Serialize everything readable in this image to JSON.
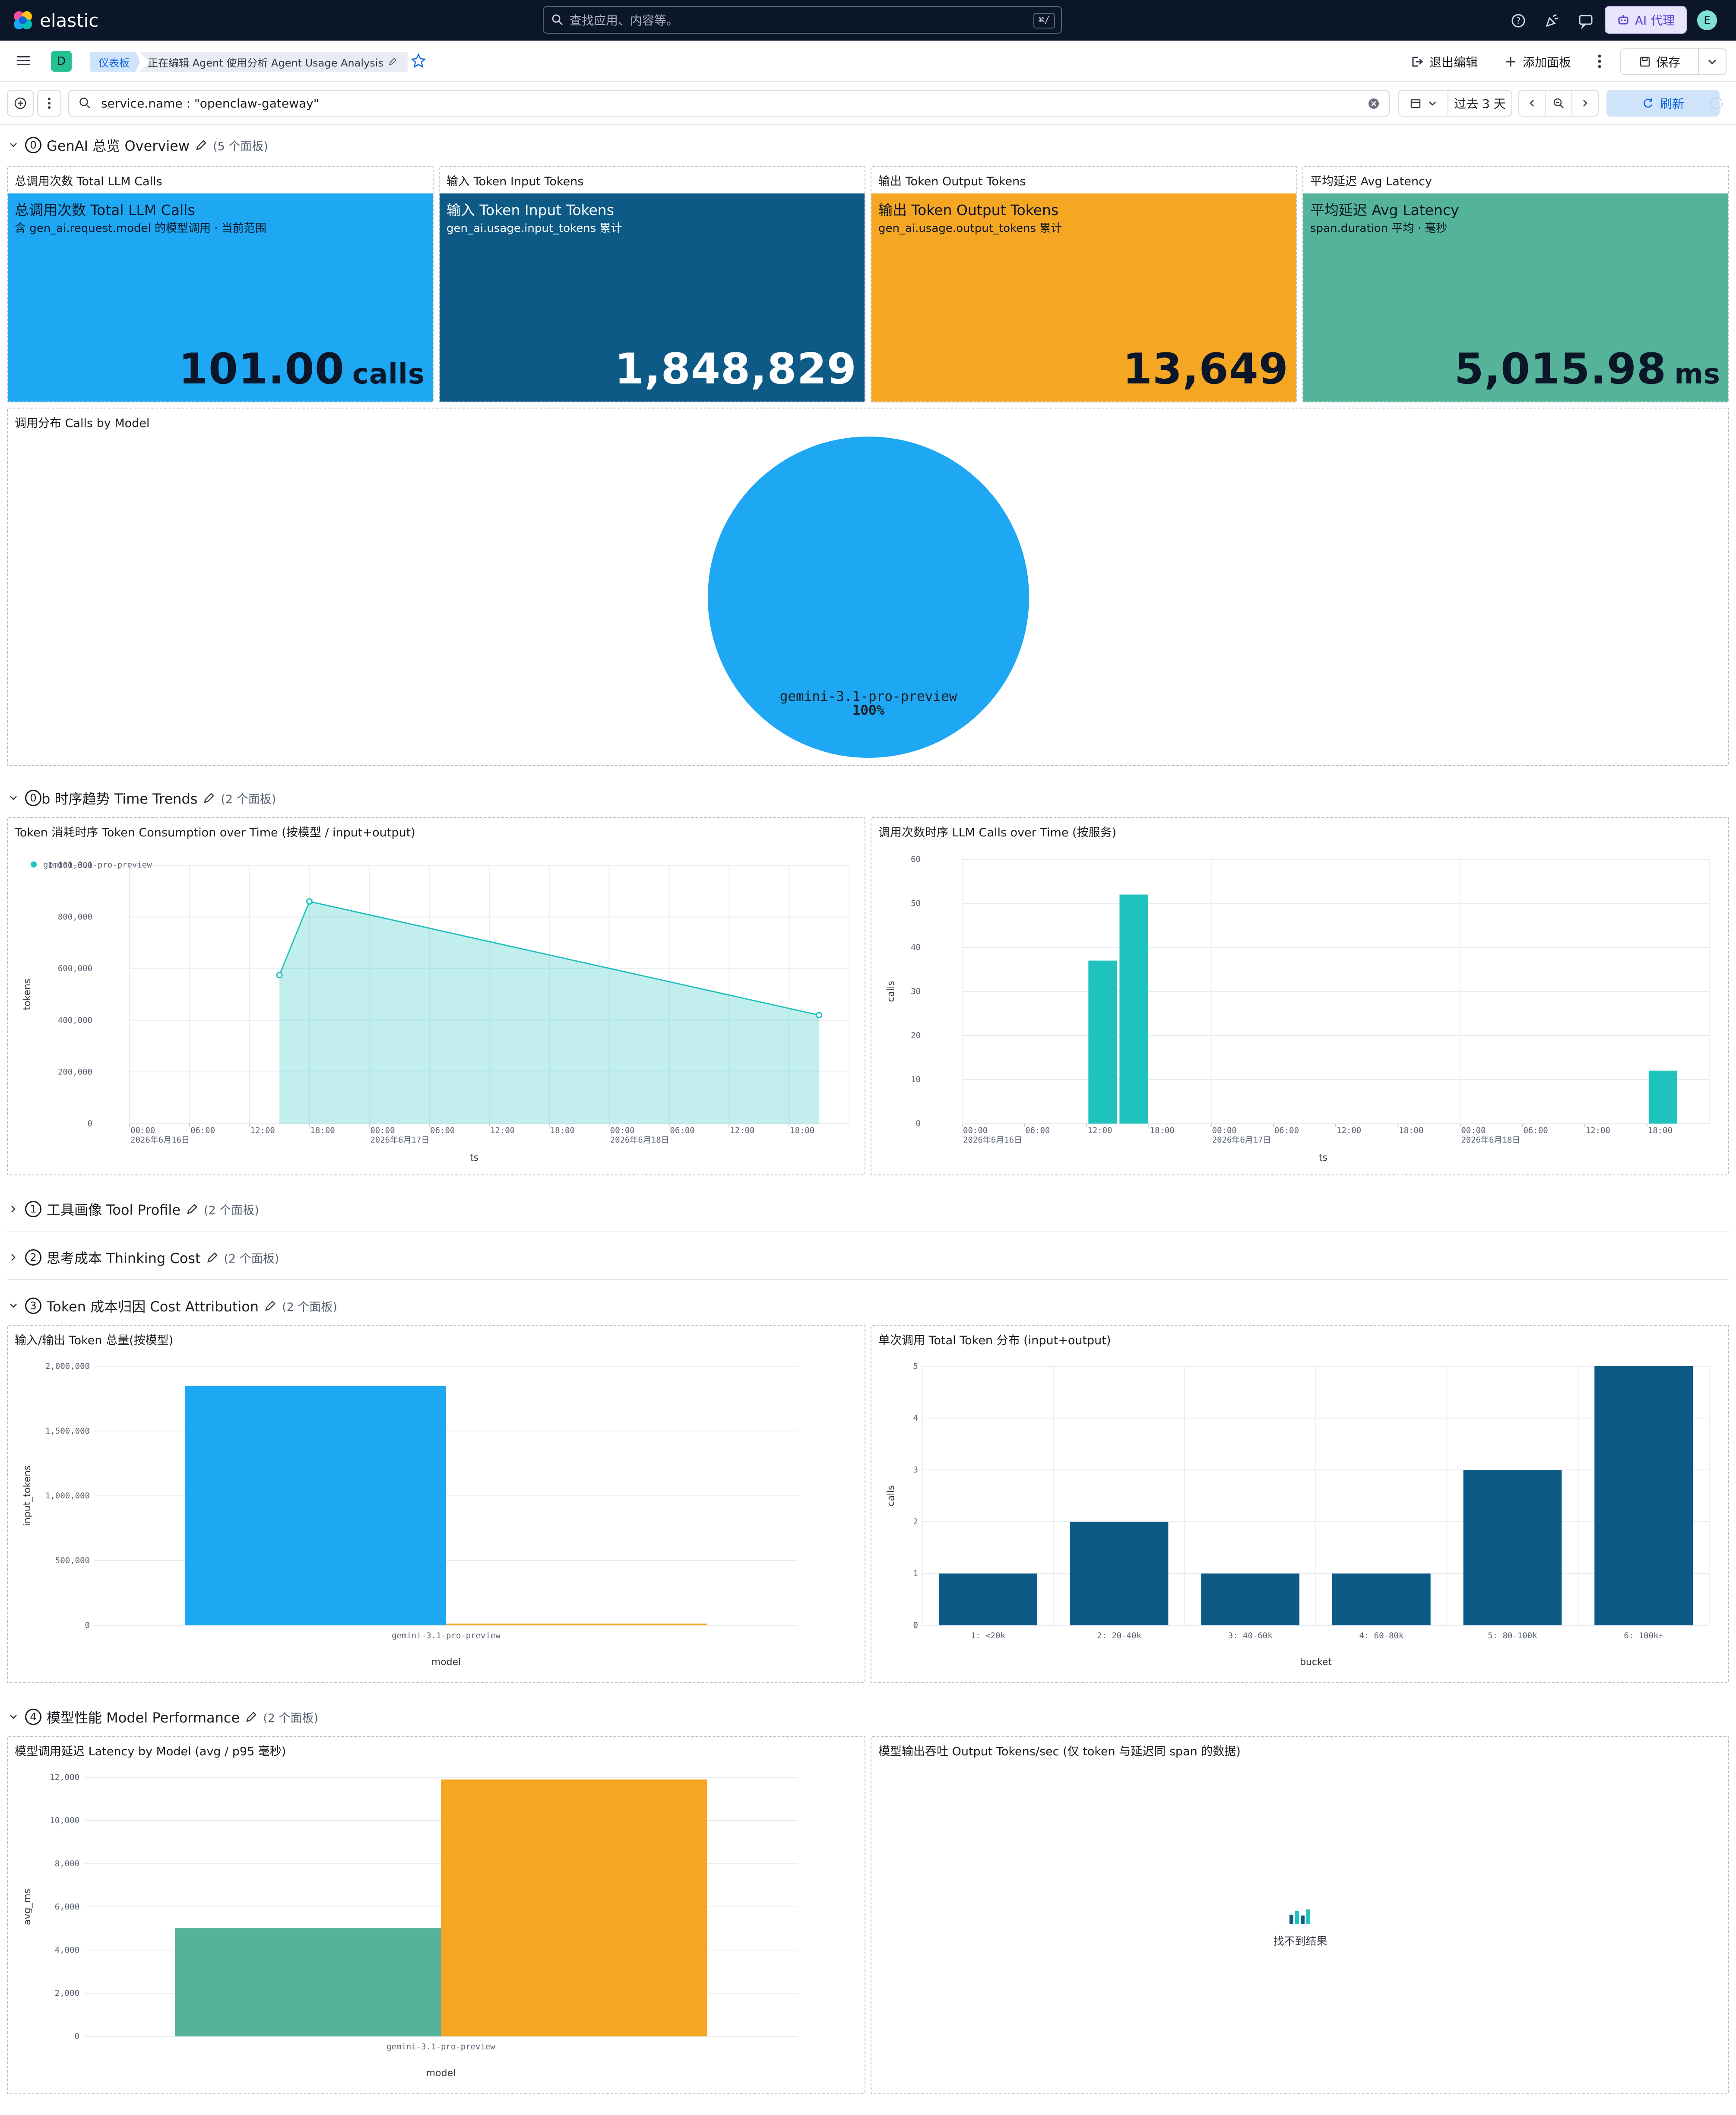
{
  "topbar": {
    "brand": "elastic",
    "search_placeholder": "查找应用、内容等。",
    "search_shortcut": "⌘/",
    "ai_label": "AI 代理",
    "avatar_initial": "E"
  },
  "navbar": {
    "space_initial": "D",
    "crumb_root": "仪表板",
    "crumb_current": "正在编辑 Agent 使用分析 Agent Usage Analysis",
    "exit_edit": "退出编辑",
    "add_panel": "添加面板",
    "save": "保存"
  },
  "query": {
    "text": "service.name : \"openclaw-gateway\"",
    "time_range": "过去 3 天",
    "refresh": "刷新"
  },
  "sections": {
    "overview": {
      "num": "0",
      "title": "GenAI 总览 Overview",
      "count": "(5 个面板)"
    },
    "trends": {
      "num": "0",
      "title_suffix": "b 时序趋势 Time Trends",
      "count": "(2 个面板)"
    },
    "tool": {
      "num": "1",
      "title": "工具画像 Tool Profile",
      "count": "(2 个面板)"
    },
    "thinking": {
      "num": "2",
      "title": "思考成本 Thinking Cost",
      "count": "(2 个面板)"
    },
    "cost": {
      "num": "3",
      "title": "Token 成本归因 Cost Attribution",
      "count": "(2 个面板)"
    },
    "perf": {
      "num": "4",
      "title": "模型性能 Model Performance",
      "count": "(2 个面板)"
    }
  },
  "metrics": [
    {
      "panel_title": "总调用次数 Total LLM Calls",
      "title": "总调用次数 Total LLM Calls",
      "subtitle": "含 gen_ai.request.model 的模型调用 · 当前范围",
      "value": "101.00",
      "unit": "calls",
      "bg": "#1ea7f2",
      "fg": "#0b1628"
    },
    {
      "panel_title": "输入 Token Input Tokens",
      "title": "输入 Token Input Tokens",
      "subtitle": "gen_ai.usage.input_tokens 累计",
      "value": "1,848,829",
      "unit": "",
      "bg": "#0e5a86",
      "fg": "#ffffff"
    },
    {
      "panel_title": "输出 Token Output Tokens",
      "title": "输出 Token Output Tokens",
      "subtitle": "gen_ai.usage.output_tokens 累计",
      "value": "13,649",
      "unit": "",
      "bg": "#f5a623",
      "fg": "#0b1628"
    },
    {
      "panel_title": "平均延迟 Avg Latency",
      "title": "平均延迟 Avg Latency",
      "subtitle": "span.duration 平均 · 毫秒",
      "value": "5,015.98",
      "unit": "ms",
      "bg": "#54b399",
      "fg": "#0b1628"
    }
  ],
  "panels": {
    "pie_title": "调用分布 Calls by Model",
    "token_time_title": "Token 消耗时序 Token Consumption over Time (按模型 / input+output)",
    "calls_time_title": "调用次数时序 LLM Calls over Time (按服务)",
    "io_title": "输入/输出 Token 总量(按模型)",
    "dist_title": "单次调用 Total Token 分布 (input+output)",
    "lat_title": "模型调用延迟 Latency by Model (avg / p95 毫秒)",
    "tput_title": "模型输出吞吐 Output Tokens/sec (仅 token 与延迟同 span 的数据)",
    "no_results": "找不到结果"
  },
  "chart_data": [
    {
      "type": "pie",
      "title": "调用分布 Calls by Model",
      "slices": [
        {
          "label": "gemini-3.1-pro-preview",
          "value": 100,
          "display": "100%",
          "color": "#1ea7f2"
        }
      ]
    },
    {
      "type": "area",
      "title": "Token 消耗时序 Token Consumption over Time (按模型 / input+output)",
      "xlabel": "ts",
      "ylabel": "tokens",
      "legend": "top-left",
      "series": [
        {
          "name": "gemini-3.1-pro-preview",
          "color": "#1ec3bd",
          "points": [
            {
              "x": "2026-06-16 15:00",
              "y": 575000
            },
            {
              "x": "2026-06-16 18:00",
              "y": 860000
            },
            {
              "x": "2026-06-18 21:00",
              "y": 420000
            }
          ]
        }
      ],
      "ylim": [
        0,
        1000000
      ],
      "yticks": [
        "0",
        "200,000",
        "400,000",
        "600,000",
        "800,000",
        "1,000,000"
      ],
      "xticks": [
        "00:00",
        "06:00",
        "12:00",
        "18:00",
        "00:00",
        "06:00",
        "12:00",
        "18:00",
        "00:00",
        "06:00",
        "12:00",
        "18:00"
      ],
      "date_labels": [
        "2026年6月16日",
        "2026年6月17日",
        "2026年6月18日"
      ]
    },
    {
      "type": "bar",
      "title": "调用次数时序 LLM Calls over Time (按服务)",
      "xlabel": "ts",
      "ylabel": "calls",
      "color": "#1ec3bd",
      "bars": [
        {
          "x": "2026-06-16 15:00",
          "y": 37
        },
        {
          "x": "2026-06-16 18:00",
          "y": 52
        },
        {
          "x": "2026-06-18 21:00",
          "y": 12
        }
      ],
      "ylim": [
        0,
        60
      ],
      "yticks": [
        "0",
        "10",
        "20",
        "30",
        "40",
        "50",
        "60"
      ],
      "xticks": [
        "00:00",
        "06:00",
        "12:00",
        "18:00",
        "00:00",
        "06:00",
        "12:00",
        "18:00",
        "00:00",
        "06:00",
        "12:00",
        "18:00"
      ],
      "date_labels": [
        "2026年6月16日",
        "2026年6月17日",
        "2026年6月18日"
      ]
    },
    {
      "type": "bar",
      "title": "输入/输出 Token 总量(按模型)",
      "xlabel": "model",
      "ylabel": "input_tokens",
      "categories": [
        "gemini-3.1-pro-preview"
      ],
      "series": [
        {
          "values": [
            1848829
          ],
          "color": "#1ea7f2"
        },
        {
          "values": [
            13649
          ],
          "color": "#f5a623"
        }
      ],
      "ylim": [
        0,
        2000000
      ],
      "yticks": [
        "0",
        "500,000",
        "1,000,000",
        "1,500,000",
        "2,000,000"
      ]
    },
    {
      "type": "bar",
      "title": "单次调用 Total Token 分布 (input+output)",
      "xlabel": "bucket",
      "ylabel": "calls",
      "color": "#0e5a86",
      "categories": [
        "1: <20k",
        "2: 20-40k",
        "3: 40-60k",
        "4: 60-80k",
        "5: 80-100k",
        "6: 100k+"
      ],
      "values": [
        1,
        2,
        1,
        1,
        3,
        5
      ],
      "ylim": [
        0,
        5
      ],
      "yticks": [
        "0",
        "1",
        "2",
        "3",
        "4",
        "5"
      ]
    },
    {
      "type": "bar",
      "title": "模型调用延迟 Latency by Model (avg / p95 毫秒)",
      "xlabel": "model",
      "ylabel": "avg_ms",
      "categories": [
        "gemini-3.1-pro-preview"
      ],
      "series": [
        {
          "values": [
            5016
          ],
          "color": "#54b399"
        },
        {
          "values": [
            11900
          ],
          "color": "#f5a623"
        }
      ],
      "ylim": [
        0,
        12000
      ],
      "yticks": [
        "0",
        "2,000",
        "4,000",
        "6,000",
        "8,000",
        "10,000",
        "12,000"
      ]
    }
  ]
}
